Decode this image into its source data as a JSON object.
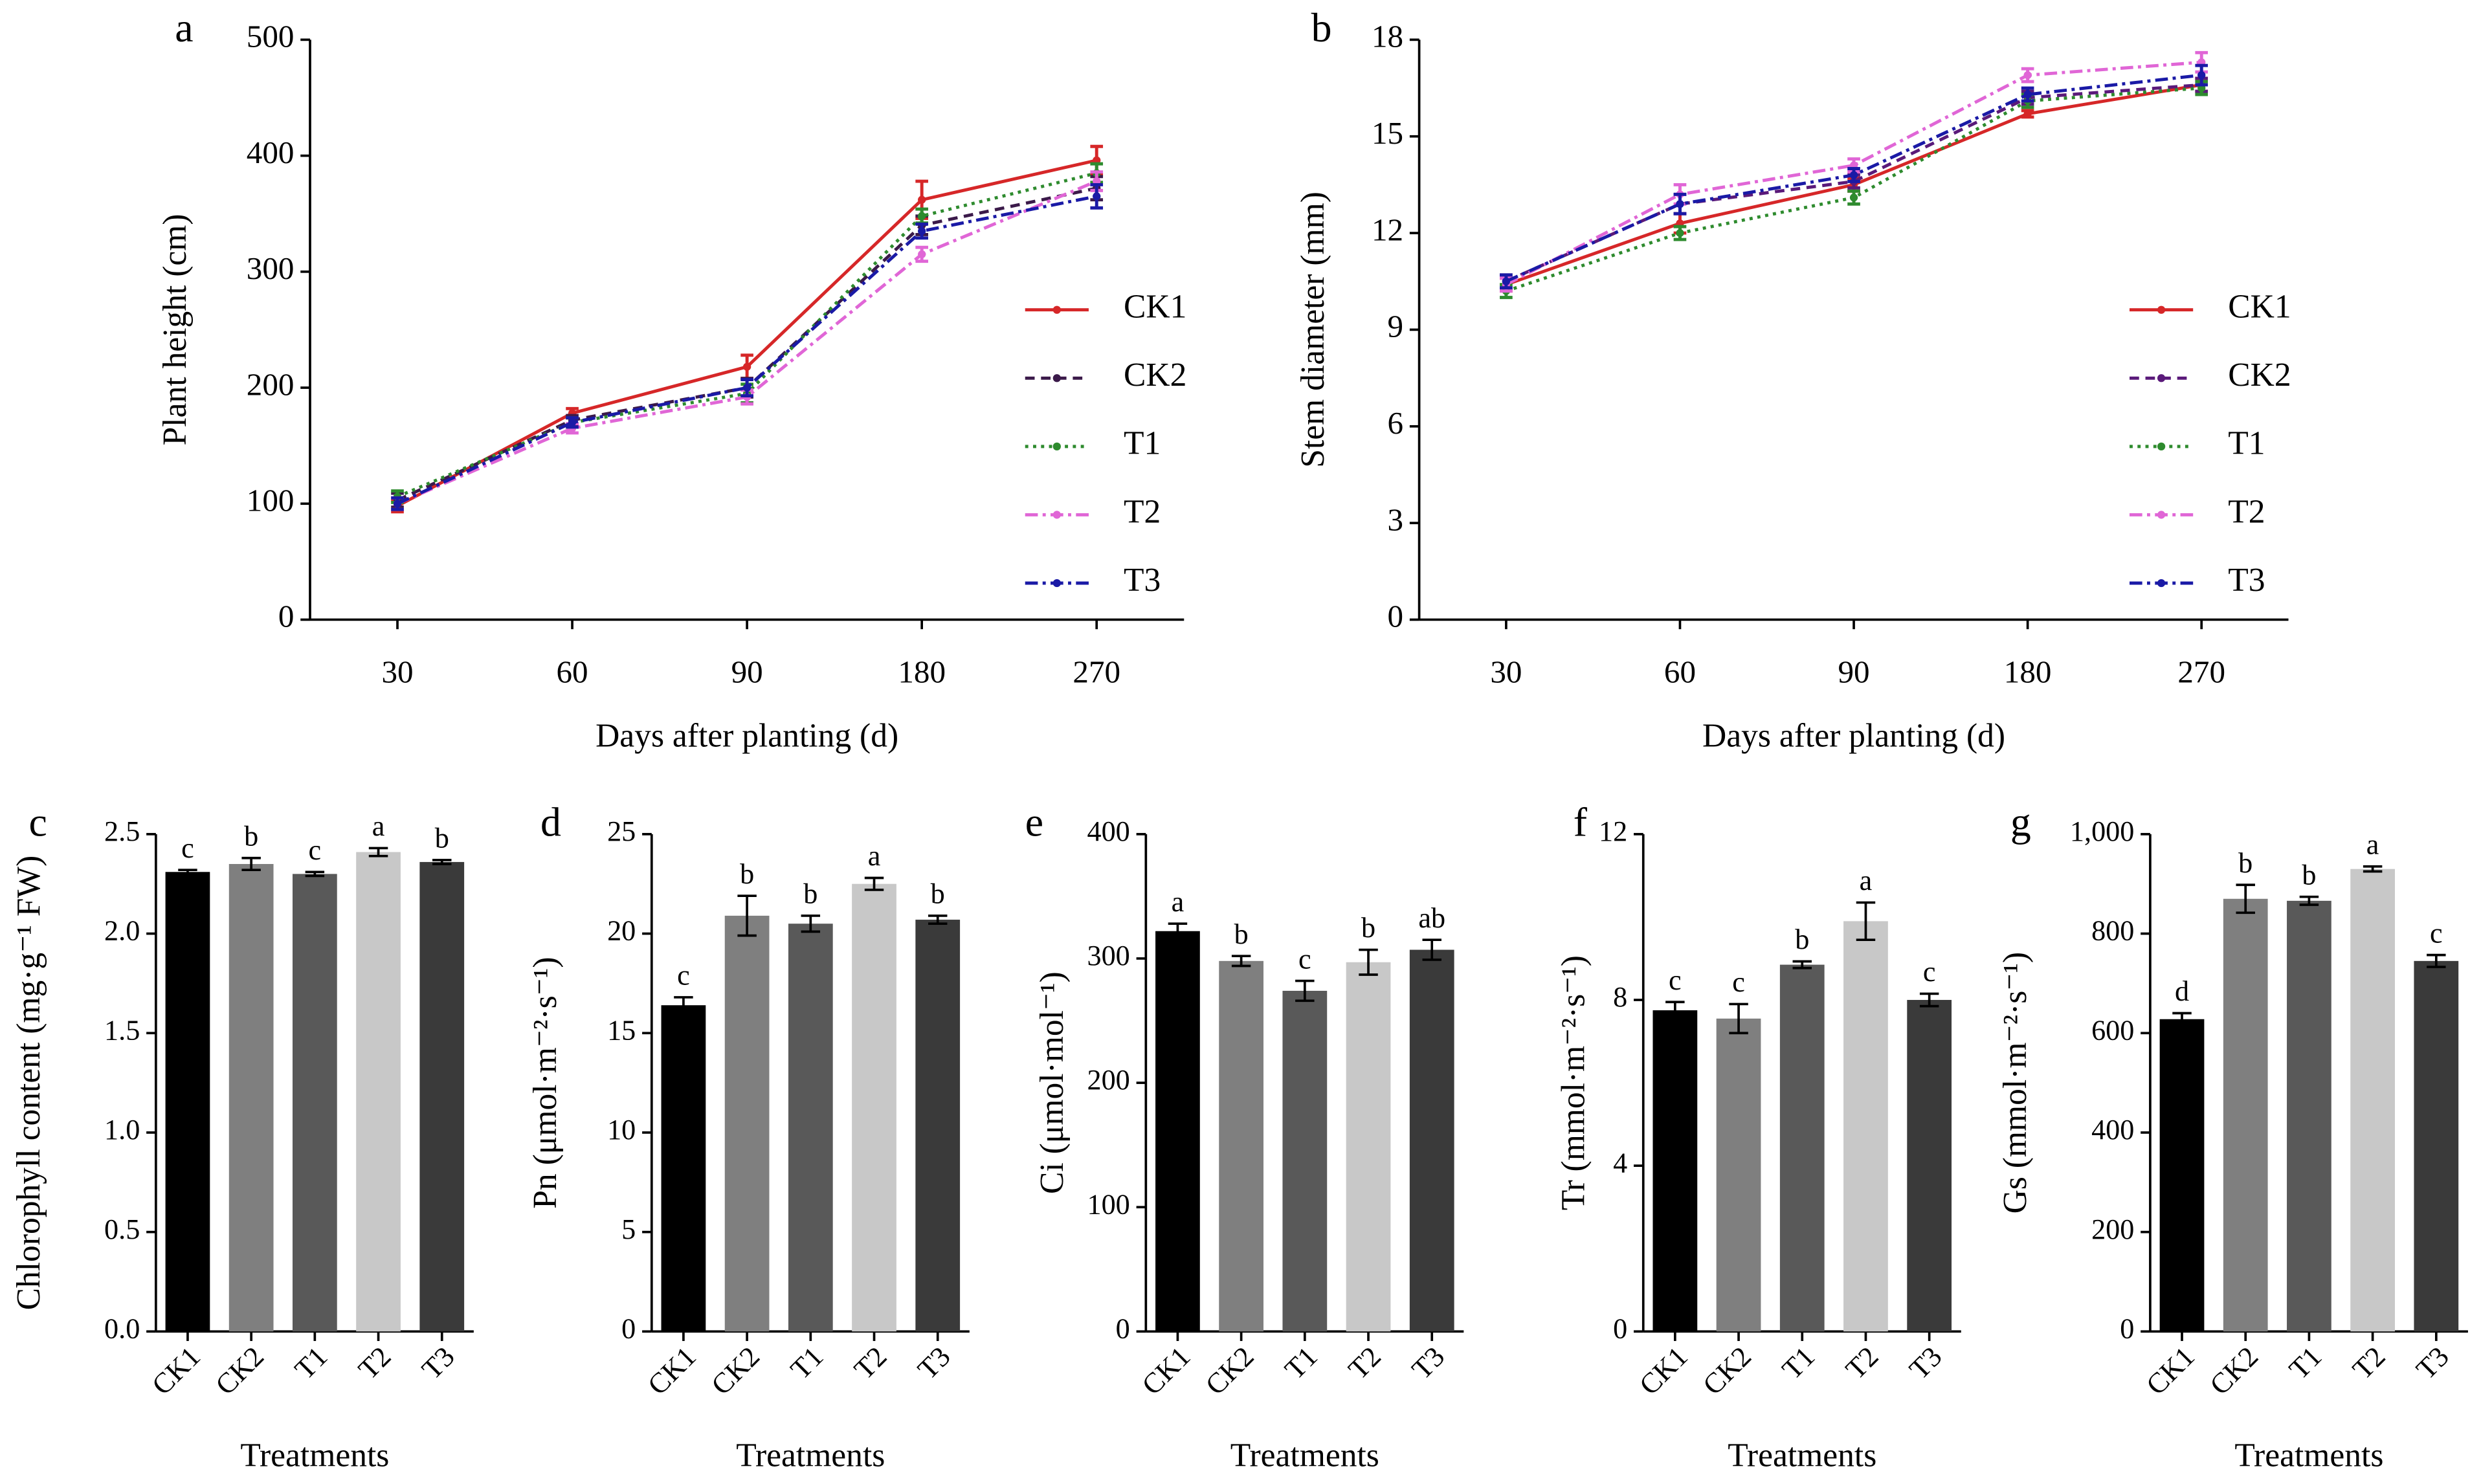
{
  "chart_data": [
    {
      "type": "line",
      "panel_label": "a",
      "x_label": "Days after planting (d)",
      "y_label": "Plant height (cm)",
      "categories": [
        "30",
        "60",
        "90",
        "180",
        "270"
      ],
      "ylim": [
        0,
        500
      ],
      "yticks": [
        0,
        100,
        200,
        300,
        400,
        500
      ],
      "legend": "right",
      "series": [
        {
          "name": "CK1",
          "color": "#d62728",
          "linestyle": "solid",
          "values": [
            98,
            178,
            218,
            362,
            396
          ],
          "errors": [
            5,
            4,
            10,
            16,
            12
          ]
        },
        {
          "name": "CK2",
          "color": "#3b1a4a",
          "linestyle": "dashed",
          "values": [
            103,
            172,
            200,
            340,
            372
          ],
          "errors": [
            6,
            4,
            8,
            8,
            10
          ]
        },
        {
          "name": "T1",
          "color": "#2e8b2e",
          "linestyle": "dotted",
          "values": [
            106,
            170,
            195,
            348,
            385
          ],
          "errors": [
            5,
            4,
            8,
            6,
            8
          ]
        },
        {
          "name": "T2",
          "color": "#e066d6",
          "linestyle": "dashdot",
          "values": [
            100,
            165,
            192,
            315,
            378
          ],
          "errors": [
            5,
            4,
            6,
            6,
            8
          ]
        },
        {
          "name": "T3",
          "color": "#1a1aa6",
          "linestyle": "dashdot",
          "values": [
            100,
            170,
            200,
            335,
            365
          ],
          "errors": [
            5,
            4,
            7,
            6,
            10
          ]
        }
      ]
    },
    {
      "type": "line",
      "panel_label": "b",
      "x_label": "Days after planting (d)",
      "y_label": "Stem diameter (mm)",
      "categories": [
        "30",
        "60",
        "90",
        "180",
        "270"
      ],
      "ylim": [
        0,
        18
      ],
      "yticks": [
        0,
        3,
        6,
        9,
        12,
        15,
        18
      ],
      "legend": "right",
      "series": [
        {
          "name": "CK1",
          "color": "#d62728",
          "linestyle": "solid",
          "values": [
            10.4,
            12.3,
            13.5,
            15.7,
            16.6
          ],
          "errors": [
            0.2,
            0.3,
            0.2,
            0.1,
            0.2
          ]
        },
        {
          "name": "CK2",
          "color": "#5a1a7a",
          "linestyle": "dashed",
          "values": [
            10.5,
            12.9,
            13.6,
            16.2,
            16.6
          ],
          "errors": [
            0.2,
            0.3,
            0.2,
            0.2,
            0.2
          ]
        },
        {
          "name": "T1",
          "color": "#2e8b2e",
          "linestyle": "dotted",
          "values": [
            10.2,
            12.0,
            13.1,
            16.1,
            16.5
          ],
          "errors": [
            0.2,
            0.2,
            0.2,
            0.2,
            0.2
          ]
        },
        {
          "name": "T2",
          "color": "#e066d6",
          "linestyle": "dashdot",
          "values": [
            10.4,
            13.2,
            14.1,
            16.9,
            17.3
          ],
          "errors": [
            0.2,
            0.3,
            0.2,
            0.2,
            0.3
          ]
        },
        {
          "name": "T3",
          "color": "#1a1aa6",
          "linestyle": "dashdot",
          "values": [
            10.5,
            12.9,
            13.8,
            16.3,
            16.9
          ],
          "errors": [
            0.2,
            0.3,
            0.2,
            0.2,
            0.3
          ]
        }
      ]
    },
    {
      "type": "bar",
      "panel_label": "c",
      "x_label": "Treatments",
      "y_label": "Chlorophyll content (mg·g⁻¹ FW)",
      "categories": [
        "CK1",
        "CK2",
        "T1",
        "T2",
        "T3"
      ],
      "colors": [
        "#000000",
        "#7f7f7f",
        "#595959",
        "#c8c8c8",
        "#3a3a3a"
      ],
      "values": [
        2.31,
        2.35,
        2.3,
        2.41,
        2.36
      ],
      "errors": [
        0.01,
        0.03,
        0.01,
        0.02,
        0.01
      ],
      "labels": [
        "c",
        "b",
        "c",
        "a",
        "b"
      ],
      "ylim": [
        0,
        2.5
      ],
      "yticks": [
        {
          "value": 0,
          "label": "0.0"
        },
        0.5,
        {
          "value": 1,
          "label": "1.0"
        },
        1.5,
        {
          "value": 2,
          "label": "2.0"
        },
        2.5
      ]
    },
    {
      "type": "bar",
      "panel_label": "d",
      "x_label": "Treatments",
      "y_label": "Pn (μmol·m⁻²·s⁻¹)",
      "categories": [
        "CK1",
        "CK2",
        "T1",
        "T2",
        "T3"
      ],
      "colors": [
        "#000000",
        "#7f7f7f",
        "#595959",
        "#c8c8c8",
        "#3a3a3a"
      ],
      "values": [
        16.4,
        20.9,
        20.5,
        22.5,
        20.7
      ],
      "errors": [
        0.4,
        1.0,
        0.4,
        0.3,
        0.2
      ],
      "labels": [
        "c",
        "b",
        "b",
        "a",
        "b"
      ],
      "ylim": [
        0,
        25
      ],
      "yticks": [
        0,
        5,
        10,
        15,
        20,
        25
      ]
    },
    {
      "type": "bar",
      "panel_label": "e",
      "x_label": "Treatments",
      "y_label": "Ci (μmol·mol⁻¹)",
      "categories": [
        "CK1",
        "CK2",
        "T1",
        "T2",
        "T3"
      ],
      "colors": [
        "#000000",
        "#7f7f7f",
        "#595959",
        "#c8c8c8",
        "#3a3a3a"
      ],
      "values": [
        322,
        298,
        274,
        297,
        307
      ],
      "errors": [
        6,
        4,
        8,
        10,
        8
      ],
      "labels": [
        "a",
        "b",
        "c",
        "b",
        "ab"
      ],
      "ylim": [
        0,
        400
      ],
      "yticks": [
        0,
        100,
        200,
        300,
        400
      ]
    },
    {
      "type": "bar",
      "panel_label": "f",
      "x_label": "Treatments",
      "y_label": "Tr (mmol·m⁻²·s⁻¹)",
      "categories": [
        "CK1",
        "CK2",
        "T1",
        "T2",
        "T3"
      ],
      "colors": [
        "#000000",
        "#7f7f7f",
        "#595959",
        "#c8c8c8",
        "#3a3a3a"
      ],
      "values": [
        7.75,
        7.55,
        8.85,
        9.9,
        8.0
      ],
      "errors": [
        0.2,
        0.35,
        0.08,
        0.45,
        0.15
      ],
      "labels": [
        "c",
        "c",
        "b",
        "a",
        "c"
      ],
      "ylim": [
        0,
        12
      ],
      "yticks": [
        0,
        4,
        8,
        12
      ]
    },
    {
      "type": "bar",
      "panel_label": "g",
      "x_label": "Treatments",
      "y_label": "Gs (mmol·m⁻²·s⁻¹)",
      "categories": [
        "CK1",
        "CK2",
        "T1",
        "T2",
        "T3"
      ],
      "colors": [
        "#000000",
        "#7f7f7f",
        "#595959",
        "#c8c8c8",
        "#3a3a3a"
      ],
      "values": [
        628,
        870,
        866,
        930,
        745
      ],
      "errors": [
        12,
        28,
        8,
        5,
        12
      ],
      "labels": [
        "d",
        "b",
        "b",
        "a",
        "c"
      ],
      "ylim": [
        0,
        1000
      ],
      "yticks": [
        0,
        200,
        400,
        600,
        800,
        {
          "value": 1000,
          "label": "1,000"
        }
      ]
    }
  ]
}
